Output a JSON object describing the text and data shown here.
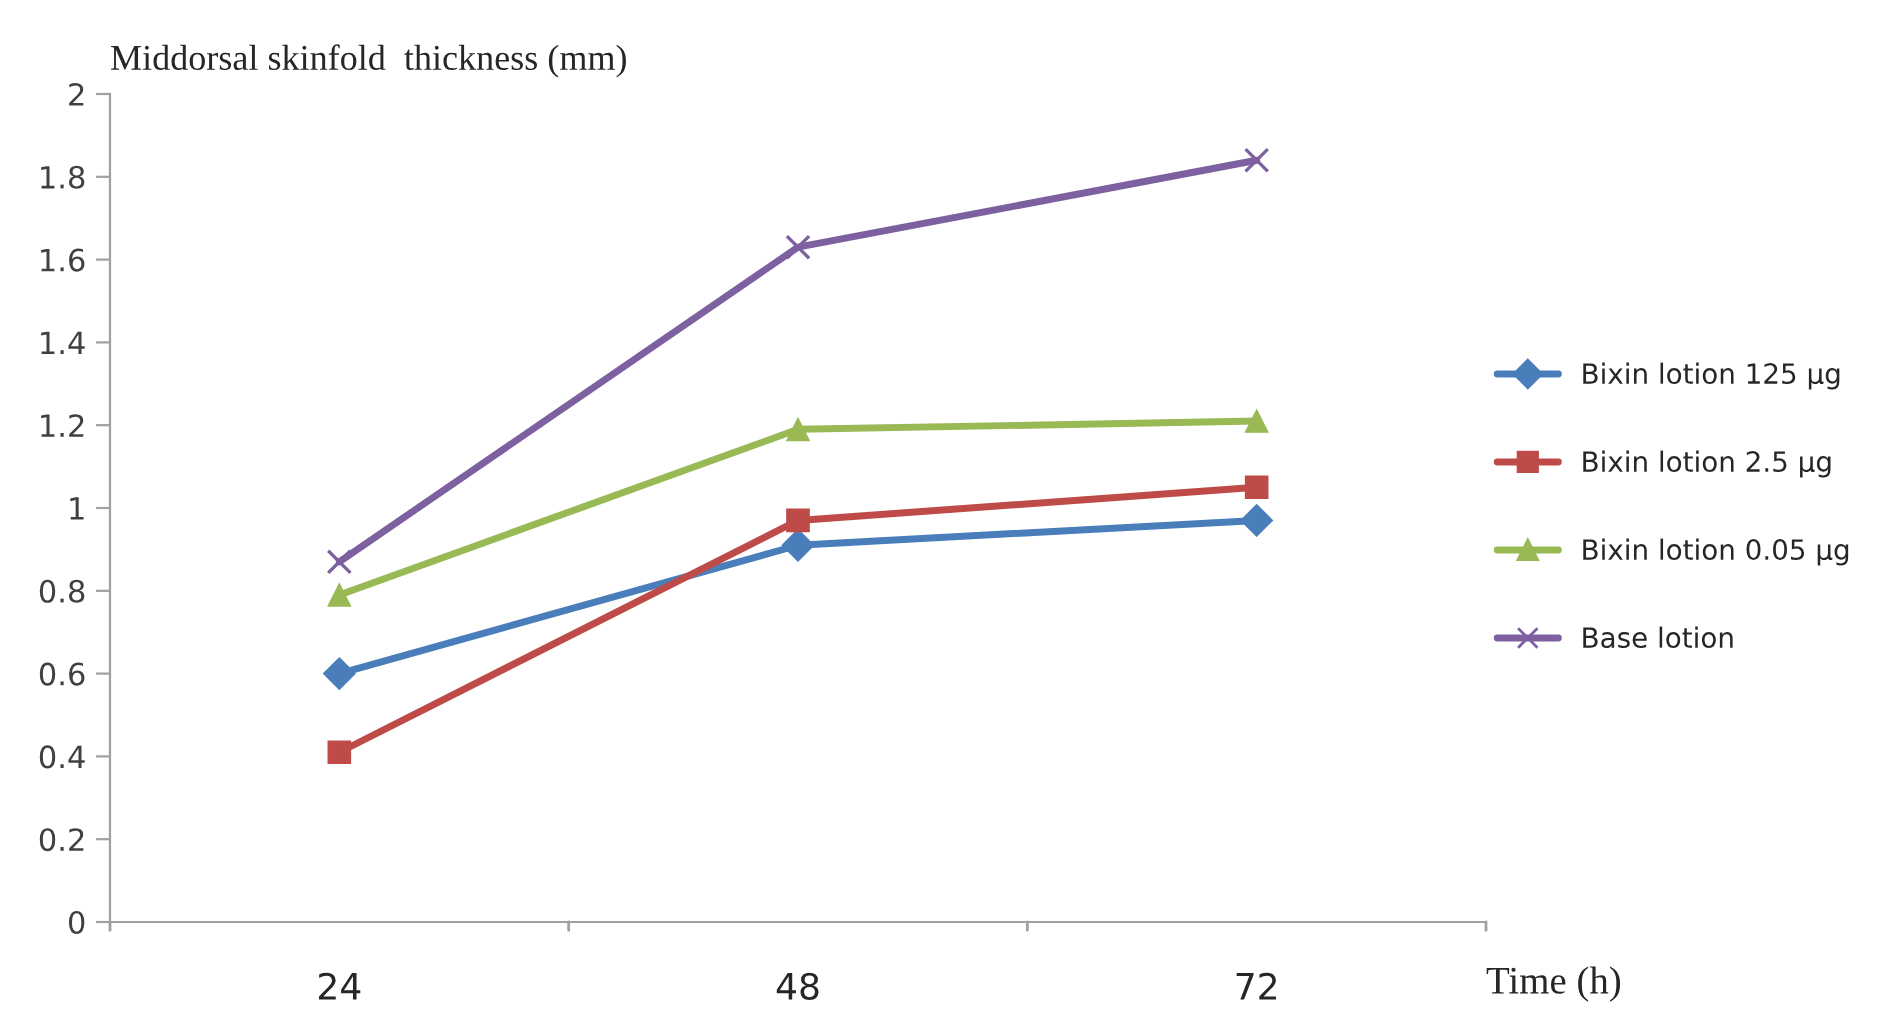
{
  "chart_data": {
    "type": "line",
    "ylabel": "Middorsal skinfold  thickness (mm)",
    "xlabel": "Time (h)",
    "categories": [
      "24",
      "48",
      "72"
    ],
    "ylim": [
      0,
      2
    ],
    "yticks": [
      0,
      0.2,
      0.4,
      0.6,
      0.8,
      1,
      1.2,
      1.4,
      1.6,
      1.8,
      2
    ],
    "grid": false,
    "legend": "right",
    "series": [
      {
        "name": "Bixin lotion 125 μg",
        "color": "#4a7ebb",
        "marker": "diamond",
        "values": [
          0.6,
          0.91,
          0.97
        ]
      },
      {
        "name": "Bixin lotion 2.5 μg",
        "color": "#be4b48",
        "marker": "square",
        "values": [
          0.41,
          0.97,
          1.05
        ]
      },
      {
        "name": "Bixin lotion 0.05 μg",
        "color": "#98b954",
        "marker": "triangle",
        "values": [
          0.79,
          1.19,
          1.21
        ]
      },
      {
        "name": "Base lotion",
        "color": "#7d60a0",
        "marker": "cross",
        "values": [
          0.87,
          1.63,
          1.84
        ]
      }
    ]
  }
}
